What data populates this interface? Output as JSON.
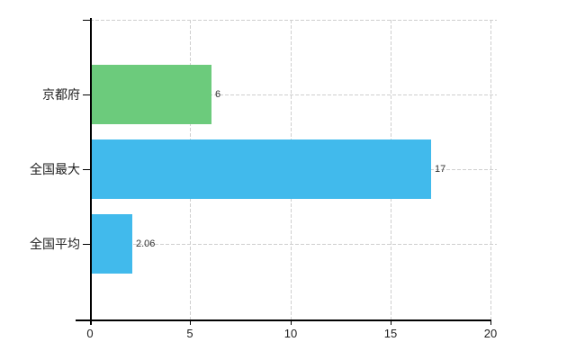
{
  "chart_data": {
    "type": "bar",
    "orientation": "horizontal",
    "categories": [
      "京都府",
      "全国最大",
      "全国平均"
    ],
    "values": [
      6,
      17,
      2.06
    ],
    "value_labels": [
      "6",
      "17",
      "2.06"
    ],
    "bar_colors": [
      "#6ccb7c",
      "#41baec",
      "#41baec"
    ],
    "xlim": [
      0,
      20
    ],
    "xticks": [
      0,
      5,
      10,
      15,
      20
    ],
    "xtick_labels": [
      "0",
      "5",
      "10",
      "15",
      "20"
    ],
    "grid": "on",
    "grid_style": "dashed",
    "legend": "none",
    "title": ""
  },
  "colors": {
    "green_bar": "#6ccb7c",
    "blue_bar": "#41baec",
    "grid_line": "#cfcfcf",
    "axis_line": "#000000",
    "label_text": "#222222",
    "value_text": "#333333",
    "background": "#ffffff"
  }
}
